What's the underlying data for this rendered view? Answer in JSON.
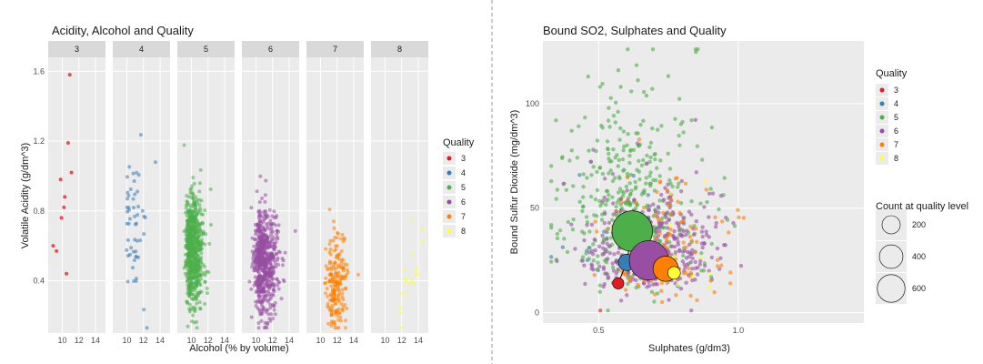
{
  "colors": {
    "3": "#E41A1C",
    "4": "#377EB8",
    "5": "#4DAF4A",
    "6": "#984EA3",
    "7": "#FF7F00",
    "8": "#FFFF33",
    "panel_bg": "#EBEBEB",
    "grid": "#FFFFFF",
    "strip_bg": "#D9D9D9",
    "divider": "#999999"
  },
  "chart_data": [
    {
      "type": "scatter",
      "title": "Acidity, Alcohol and Quality",
      "xlabel": "Alcohol (% by volume)",
      "ylabel": "Volatile Acidity (g/dm^3)",
      "xlim": [
        8.3,
        15.2
      ],
      "ylim": [
        0.1,
        1.68
      ],
      "x_ticks": [
        10,
        12,
        14
      ],
      "y_ticks": [
        0.4,
        0.8,
        1.2,
        1.6
      ],
      "facets": [
        "3",
        "4",
        "5",
        "6",
        "7",
        "8"
      ],
      "legend": {
        "title": "Quality",
        "entries": [
          "3",
          "4",
          "5",
          "6",
          "7",
          "8"
        ],
        "position": "right"
      },
      "grid": true,
      "facet_counts": {
        "3": 10,
        "4": 53,
        "5": 681,
        "6": 638,
        "7": 199,
        "8": 18
      },
      "points_3": [
        [
          8.9,
          0.6
        ],
        [
          9.3,
          0.57
        ],
        [
          9.8,
          0.98
        ],
        [
          9.9,
          0.76
        ],
        [
          10.2,
          0.82
        ],
        [
          10.3,
          0.88
        ],
        [
          10.5,
          0.44
        ],
        [
          10.7,
          1.19
        ],
        [
          10.9,
          1.58
        ],
        [
          11.1,
          1.02
        ]
      ]
    },
    {
      "type": "scatter",
      "title": "Bound SO2, Sulphates and Quality",
      "xlabel": "Sulphates (g/dm3)",
      "ylabel": "Bound Sulfur Dioxide (mg/dm^3)",
      "xlim": [
        0.3,
        1.45
      ],
      "ylim": [
        -5,
        130
      ],
      "x_ticks": [
        0.5,
        1.0
      ],
      "y_ticks": [
        0,
        50,
        100
      ],
      "legend": {
        "title": "Quality",
        "entries": [
          "3",
          "4",
          "5",
          "6",
          "7",
          "8"
        ],
        "position": "right"
      },
      "size_legend": {
        "title": "Count at quality level",
        "entries": [
          200,
          400,
          600
        ]
      },
      "grid": true,
      "means": [
        {
          "quality": "3",
          "x": 0.57,
          "y": 14,
          "count": 10
        },
        {
          "quality": "4",
          "x": 0.6,
          "y": 24,
          "count": 53
        },
        {
          "quality": "5",
          "x": 0.62,
          "y": 39,
          "count": 681
        },
        {
          "quality": "6",
          "x": 0.68,
          "y": 25,
          "count": 638
        },
        {
          "quality": "7",
          "x": 0.74,
          "y": 21,
          "count": 199
        },
        {
          "quality": "8",
          "x": 0.77,
          "y": 19,
          "count": 18
        }
      ]
    }
  ]
}
